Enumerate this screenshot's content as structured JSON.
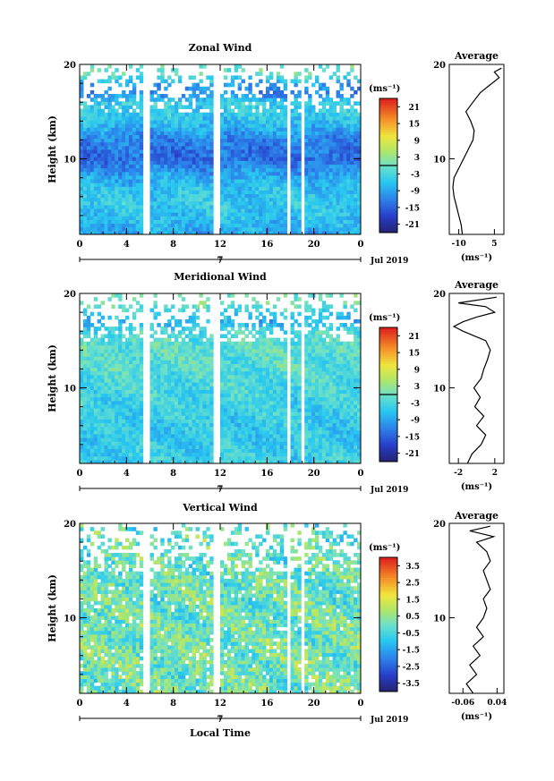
{
  "chart_data": [
    {
      "type": "heatmap",
      "title": "Zonal Wind",
      "ylabel": "Height (km)",
      "xlabel": "",
      "xlim": [
        0,
        24
      ],
      "ylim": [
        2,
        20
      ],
      "x_ticks": [
        "0",
        "4",
        "8",
        "12",
        "16",
        "20",
        "0"
      ],
      "y_ticks": [
        "10",
        "20"
      ],
      "date_axis": {
        "day": "7",
        "label": "Jul 2019"
      },
      "colorbar": {
        "unit": "(ms⁻¹)",
        "ticks": [
          "21",
          "15",
          "9",
          "3",
          "-3",
          "-9",
          "-15",
          "-21"
        ],
        "range": [
          -24,
          24
        ]
      },
      "field": {
        "heights": [
          2,
          4,
          6,
          8,
          10,
          12,
          14,
          16,
          17,
          18,
          19
        ],
        "values": [
          -9,
          -6,
          -5,
          -8,
          -14,
          -12,
          -6,
          -4,
          -12,
          -9,
          0
        ]
      },
      "average": {
        "title": "Average",
        "xlabel": "(ms⁻¹)",
        "x_ticks": [
          "-10",
          "5"
        ],
        "xlim": [
          -14,
          9
        ],
        "y_ticks": [
          "10",
          "20"
        ],
        "profile": [
          [
            -8.5,
            2
          ],
          [
            -9,
            3
          ],
          [
            -10,
            4
          ],
          [
            -11,
            5
          ],
          [
            -12,
            6
          ],
          [
            -12.5,
            7
          ],
          [
            -12,
            8
          ],
          [
            -10,
            9
          ],
          [
            -8,
            10
          ],
          [
            -6,
            11
          ],
          [
            -4,
            12
          ],
          [
            -3.5,
            13
          ],
          [
            -5,
            14
          ],
          [
            -7,
            15
          ],
          [
            -4,
            16
          ],
          [
            -1,
            17
          ],
          [
            4,
            18
          ],
          [
            7,
            18.6
          ],
          [
            5,
            19.2
          ],
          [
            8,
            19.6
          ]
        ]
      }
    },
    {
      "type": "heatmap",
      "title": "Meridional Wind",
      "ylabel": "Height (km)",
      "xlabel": "",
      "xlim": [
        0,
        24
      ],
      "ylim": [
        2,
        20
      ],
      "x_ticks": [
        "0",
        "4",
        "8",
        "12",
        "16",
        "20",
        "0"
      ],
      "y_ticks": [
        "10",
        "20"
      ],
      "date_axis": {
        "day": "7",
        "label": "Jul 2019"
      },
      "colorbar": {
        "unit": "(ms⁻¹)",
        "ticks": [
          "21",
          "15",
          "9",
          "3",
          "-3",
          "-9",
          "-15",
          "-21"
        ],
        "range": [
          -24,
          24
        ]
      },
      "field": {
        "heights": [
          2,
          4,
          6,
          8,
          10,
          12,
          14,
          16,
          17,
          18,
          19
        ],
        "values": [
          -4,
          -5,
          -5,
          -4,
          -3,
          -2,
          -1,
          -2,
          -8,
          -4,
          0
        ]
      },
      "average": {
        "title": "Average",
        "xlabel": "(ms⁻¹)",
        "x_ticks": [
          "-2",
          "2"
        ],
        "xlim": [
          -3,
          3
        ],
        "y_ticks": [
          "10",
          "20"
        ],
        "profile": [
          [
            -1,
            2
          ],
          [
            -0.5,
            3
          ],
          [
            0.5,
            4
          ],
          [
            1,
            5
          ],
          [
            0,
            6
          ],
          [
            0.8,
            7
          ],
          [
            -0.2,
            8
          ],
          [
            0.4,
            9
          ],
          [
            -0.3,
            10
          ],
          [
            0.5,
            11
          ],
          [
            0.8,
            12
          ],
          [
            1.2,
            13
          ],
          [
            1.5,
            14
          ],
          [
            1,
            15
          ],
          [
            -1.5,
            16
          ],
          [
            -2.5,
            16.5
          ],
          [
            -1.5,
            17
          ],
          [
            0,
            17.5
          ],
          [
            2,
            18
          ],
          [
            1,
            18.6
          ],
          [
            -2,
            19
          ],
          [
            2.2,
            19.6
          ]
        ]
      }
    },
    {
      "type": "heatmap",
      "title": "Vertical Wind",
      "ylabel": "Height (km)",
      "xlabel": "Local Time",
      "xlim": [
        0,
        24
      ],
      "ylim": [
        2,
        20
      ],
      "x_ticks": [
        "0",
        "4",
        "8",
        "12",
        "16",
        "20",
        "0"
      ],
      "y_ticks": [
        "10",
        "20"
      ],
      "date_axis": {
        "day": "7",
        "label": "Jul 2019"
      },
      "colorbar": {
        "unit": "(ms⁻¹)",
        "ticks": [
          "3.5",
          "2.5",
          "1.5",
          "0.5",
          "-0.5",
          "-1.5",
          "-2.5",
          "-3.5"
        ],
        "range": [
          -4,
          4
        ]
      },
      "field": {
        "heights": [
          2,
          6,
          10,
          14,
          18
        ],
        "values": [
          0.1,
          0.2,
          0.1,
          0.0,
          -0.1
        ]
      },
      "average": {
        "title": "Average",
        "xlabel": "(ms⁻¹)",
        "x_ticks": [
          "-0.06",
          "0.04"
        ],
        "xlim": [
          -0.1,
          0.06
        ],
        "y_ticks": [
          "10",
          "20"
        ],
        "profile": [
          [
            -0.03,
            2
          ],
          [
            -0.05,
            3
          ],
          [
            -0.02,
            4
          ],
          [
            -0.04,
            5
          ],
          [
            -0.01,
            6
          ],
          [
            -0.03,
            7
          ],
          [
            0.0,
            8
          ],
          [
            -0.02,
            9
          ],
          [
            0.0,
            10
          ],
          [
            0.01,
            11
          ],
          [
            0.0,
            12
          ],
          [
            0.02,
            13
          ],
          [
            0.01,
            14
          ],
          [
            0.0,
            15
          ],
          [
            0.02,
            16
          ],
          [
            0.01,
            17
          ],
          [
            -0.02,
            18
          ],
          [
            0.03,
            18.6
          ],
          [
            -0.04,
            19.2
          ],
          [
            0.02,
            19.7
          ]
        ]
      }
    }
  ]
}
